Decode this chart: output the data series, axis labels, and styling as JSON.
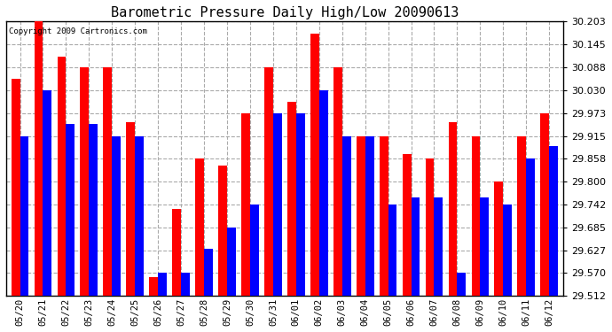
{
  "title": "Barometric Pressure Daily High/Low 20090613",
  "copyright": "Copyright 2009 Cartronics.com",
  "categories": [
    "05/20",
    "05/21",
    "05/22",
    "05/23",
    "05/24",
    "05/25",
    "05/26",
    "05/27",
    "05/28",
    "05/29",
    "05/30",
    "05/31",
    "06/01",
    "06/02",
    "06/03",
    "06/04",
    "06/05",
    "06/06",
    "06/07",
    "06/08",
    "06/09",
    "06/10",
    "06/11",
    "06/12"
  ],
  "highs": [
    30.06,
    30.203,
    30.115,
    30.088,
    30.088,
    29.95,
    29.56,
    29.73,
    29.858,
    29.84,
    29.973,
    30.088,
    30.0,
    30.173,
    30.088,
    29.915,
    29.915,
    29.87,
    29.858,
    29.95,
    29.915,
    29.8,
    29.915,
    29.973
  ],
  "lows": [
    29.915,
    30.03,
    29.945,
    29.945,
    29.915,
    29.915,
    29.57,
    29.57,
    29.63,
    29.685,
    29.742,
    29.973,
    29.973,
    30.03,
    29.915,
    29.915,
    29.742,
    29.76,
    29.76,
    29.57,
    29.76,
    29.742,
    29.858,
    29.89
  ],
  "high_color": "#ff0000",
  "low_color": "#0000ff",
  "bg_color": "#ffffff",
  "plot_bg_color": "#ffffff",
  "grid_color": "#aaaaaa",
  "title_fontsize": 11,
  "ylim_min": 29.512,
  "ylim_max": 30.203,
  "yticks": [
    29.512,
    29.57,
    29.627,
    29.685,
    29.742,
    29.8,
    29.858,
    29.915,
    29.973,
    30.03,
    30.088,
    30.145,
    30.203
  ],
  "bar_bottom": 29.512
}
